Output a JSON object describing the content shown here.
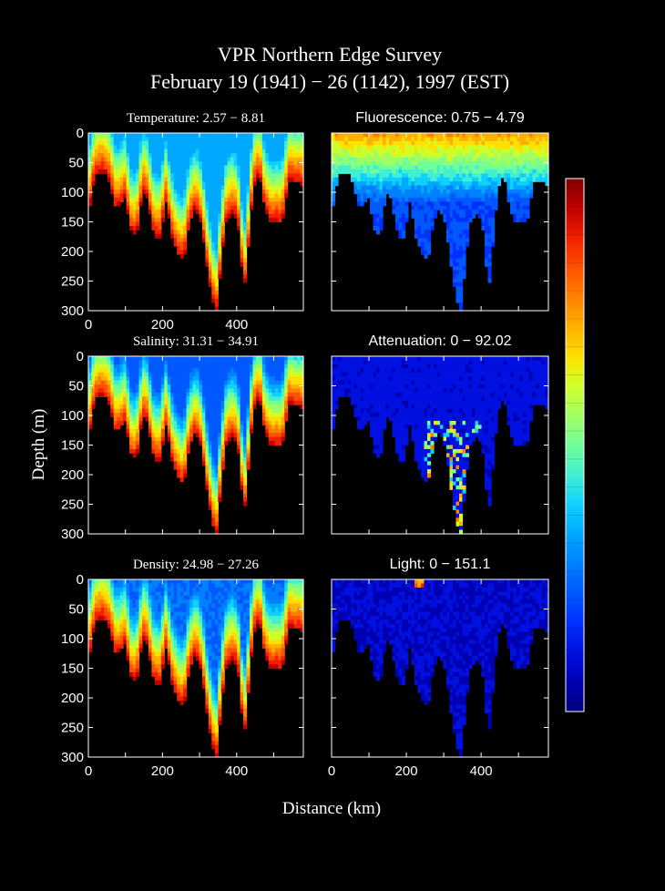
{
  "figure": {
    "title_line1": "VPR Northern Edge Survey",
    "title_line2": "February 19 (1941) − 26 (1142), 1997 (EST)",
    "ylabel": "Depth (m)",
    "xlabel": "Distance (km)"
  },
  "colors": {
    "background": "#000000",
    "axis": "#ffffff",
    "colormap": [
      "#00007f",
      "#0000b3",
      "#0010e0",
      "#0030ff",
      "#0058ff",
      "#0080ff",
      "#00a8ff",
      "#10d0ff",
      "#40f0d0",
      "#70ff98",
      "#a0ff60",
      "#d0ff28",
      "#ffe000",
      "#ffb000",
      "#ff8000",
      "#ff5000",
      "#f02000",
      "#c00000",
      "#800000"
    ]
  },
  "colorbar": {
    "scale": "jet",
    "labels": []
  },
  "chart_data": [
    {
      "type": "heatmap",
      "panel": "temperature",
      "title": "Temperature:  2.57 − 8.81",
      "range": [
        2.57,
        8.81
      ],
      "xlim": [
        0,
        580
      ],
      "ylim": [
        300,
        0
      ],
      "xticks": [
        "0",
        "200",
        "400"
      ],
      "yticks": [
        "0",
        "50",
        "100",
        "150",
        "200",
        "250",
        "300"
      ],
      "xlabel": "",
      "ylabel": ""
    },
    {
      "type": "heatmap",
      "panel": "fluorescence",
      "title": "Fluorescence:  0.75 − 4.79",
      "range": [
        0.75,
        4.79
      ],
      "xlim": [
        0,
        580
      ],
      "ylim": [
        300,
        0
      ],
      "xticks": [],
      "yticks": []
    },
    {
      "type": "heatmap",
      "panel": "salinity",
      "title": "Salinity:  31.31 − 34.91",
      "range": [
        31.31,
        34.91
      ],
      "xlim": [
        0,
        580
      ],
      "ylim": [
        300,
        0
      ],
      "xticks": [],
      "yticks": [
        "0",
        "50",
        "100",
        "150",
        "200",
        "250",
        "300"
      ]
    },
    {
      "type": "heatmap",
      "panel": "attenuation",
      "title": "Attenuation:  0 − 92.02",
      "range": [
        0,
        92.02
      ],
      "xlim": [
        0,
        580
      ],
      "ylim": [
        300,
        0
      ],
      "xticks": [],
      "yticks": []
    },
    {
      "type": "heatmap",
      "panel": "density",
      "title": "Density:  24.98 − 27.26",
      "range": [
        24.98,
        27.26
      ],
      "xlim": [
        0,
        580
      ],
      "ylim": [
        300,
        0
      ],
      "xticks": [
        "0",
        "200",
        "400"
      ],
      "yticks": [
        "0",
        "50",
        "100",
        "150",
        "200",
        "250",
        "300"
      ]
    },
    {
      "type": "heatmap",
      "panel": "light",
      "title": "Light:  0 − 151.1",
      "range": [
        0,
        151.1
      ],
      "xlim": [
        0,
        580
      ],
      "ylim": [
        300,
        0
      ],
      "xticks": [
        "0",
        "200",
        "400"
      ],
      "yticks": []
    }
  ]
}
